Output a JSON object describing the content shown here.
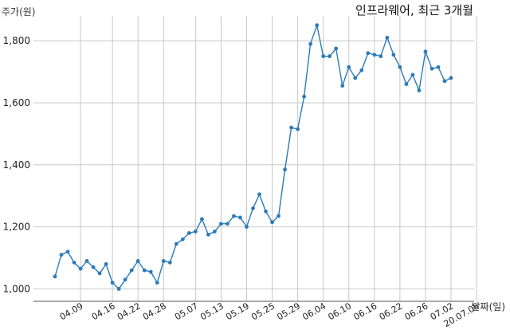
{
  "chart_data": {
    "type": "line",
    "title": "인프라웨어, 최근 3개월",
    "ylabel": "주가(원)",
    "xlabel": "날짜(일)",
    "ylim": [
      960,
      1880
    ],
    "yticks": [
      1000,
      1200,
      1400,
      1600,
      1800
    ],
    "ytick_labels": [
      "1,000",
      "1,200",
      "1,400",
      "1,600",
      "1,800"
    ],
    "x_tick_labels": [
      "04.09",
      "04.16",
      "04.22",
      "04.28",
      "05.07",
      "05.13",
      "05.19",
      "05.25",
      "05.29",
      "06.04",
      "06.10",
      "06.16",
      "06.22",
      "06.26",
      "07.02",
      "20.07.08"
    ],
    "x_tick_index": [
      4,
      9,
      13,
      17,
      22,
      26,
      30,
      34,
      38,
      42,
      46,
      50,
      54,
      58,
      62,
      66
    ],
    "grid": true,
    "color": "#2b7bb9",
    "values": [
      1040,
      1110,
      1120,
      1085,
      1065,
      1090,
      1070,
      1050,
      1080,
      1020,
      1000,
      1030,
      1060,
      1090,
      1060,
      1055,
      1020,
      1090,
      1085,
      1145,
      1160,
      1180,
      1185,
      1225,
      1175,
      1185,
      1210,
      1210,
      1235,
      1230,
      1200,
      1260,
      1305,
      1250,
      1215,
      1235,
      1385,
      1520,
      1515,
      1620,
      1790,
      1850,
      1750,
      1750,
      1775,
      1655,
      1715,
      1680,
      1705,
      1760,
      1755,
      1750,
      1810,
      1755,
      1715,
      1660,
      1690,
      1640,
      1765,
      1710,
      1715,
      1670,
      1680
    ]
  }
}
